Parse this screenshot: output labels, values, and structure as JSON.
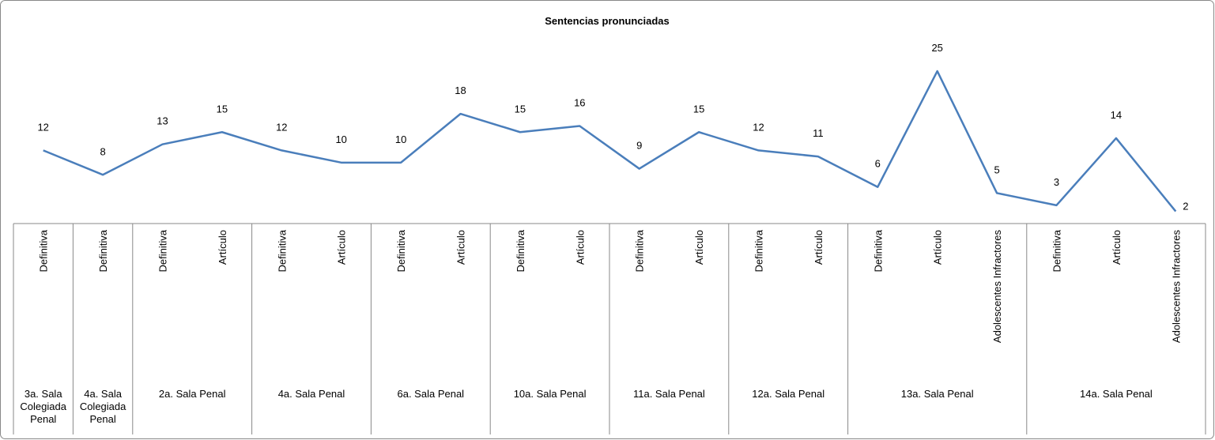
{
  "chart_data": {
    "type": "line",
    "title": "Sentencias pronunciadas",
    "groups": [
      {
        "name": "3a. Sala Colegiada Penal",
        "categories": [
          "Definitiva"
        ]
      },
      {
        "name": "4a. Sala Colegiada Penal",
        "categories": [
          "Definitiva"
        ]
      },
      {
        "name": "2a. Sala Penal",
        "categories": [
          "Definitiva",
          "Artículo"
        ]
      },
      {
        "name": "4a. Sala Penal",
        "categories": [
          "Definitiva",
          "Artículo"
        ]
      },
      {
        "name": "6a. Sala Penal",
        "categories": [
          "Definitiva",
          "Artículo"
        ]
      },
      {
        "name": "10a. Sala Penal",
        "categories": [
          "Definitiva",
          "Artículo"
        ]
      },
      {
        "name": "11a. Sala Penal",
        "categories": [
          "Definitiva",
          "Artículo"
        ]
      },
      {
        "name": "12a. Sala Penal",
        "categories": [
          "Definitiva",
          "Artículo"
        ]
      },
      {
        "name": "13a. Sala Penal",
        "categories": [
          "Definitiva",
          "Artículo",
          "Adolescentes Infractores"
        ]
      },
      {
        "name": "14a. Sala Penal",
        "categories": [
          "Definitiva",
          "Artículo",
          "Adolescentes Infractores"
        ]
      }
    ],
    "series": [
      {
        "color": "#4a7ebb",
        "values": [
          12,
          8,
          13,
          15,
          12,
          10,
          10,
          18,
          15,
          16,
          9,
          15,
          12,
          11,
          6,
          25,
          5,
          3,
          14,
          2
        ]
      }
    ],
    "ylim": [
      0,
      30
    ]
  }
}
